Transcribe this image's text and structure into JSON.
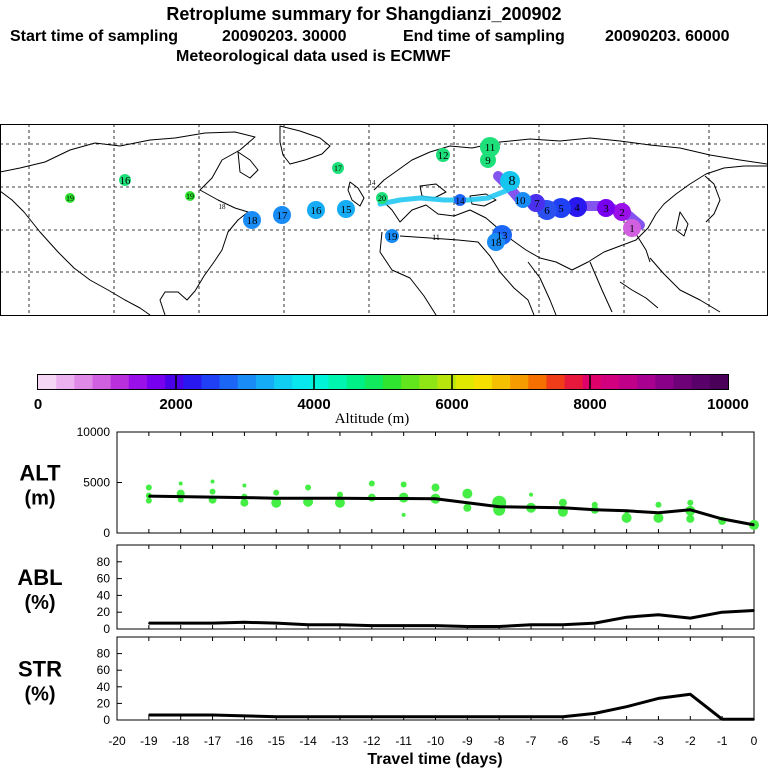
{
  "header": {
    "title": "Retroplume summary for Shangdianzi_200902",
    "start_label": "Start time of sampling",
    "start_value": "20090203. 30000",
    "end_label": "End time of sampling",
    "end_value": "20090203. 60000",
    "met_label": "Meteorological data used is ECMWF"
  },
  "colorbar": {
    "label": "Altitude (m)",
    "tick_labels": [
      "0",
      "2000",
      "4000",
      "6000",
      "8000",
      "10000"
    ],
    "colors": [
      "#f5d6f5",
      "#ecb2ef",
      "#e08ae8",
      "#d060e0",
      "#b830dc",
      "#9a10e8",
      "#7800f0",
      "#4a00e8",
      "#2a18f0",
      "#1f40f5",
      "#1c66f5",
      "#1a8cf5",
      "#16acf5",
      "#10cdf2",
      "#08e6ee",
      "#00f5d8",
      "#00f5b0",
      "#00f088",
      "#10ea5c",
      "#30e530",
      "#62e51c",
      "#90e614",
      "#b8e60c",
      "#e0e800",
      "#f5e000",
      "#f5c000",
      "#f59c00",
      "#f57000",
      "#f03c18",
      "#e8183c",
      "#e0006a",
      "#d2007e",
      "#c00088",
      "#a80090",
      "#8a0088",
      "#6e0078",
      "#5a006a",
      "#4a0058"
    ]
  },
  "map_labels": [
    {
      "t": "11",
      "c": "#1ee07a"
    },
    {
      "t": "12",
      "c": "#1ee07a"
    },
    {
      "t": "9",
      "c": "#1ee07a"
    },
    {
      "t": "8",
      "c": "#14c6ee"
    },
    {
      "t": "10",
      "c": "#1a8cf5"
    },
    {
      "t": "7",
      "c": "#4a30ee"
    },
    {
      "t": "6",
      "c": "#2a50f0"
    },
    {
      "t": "5",
      "c": "#1f40f5"
    },
    {
      "t": "4",
      "c": "#2a18f0"
    },
    {
      "t": "3",
      "c": "#7800f0"
    },
    {
      "t": "2",
      "c": "#9a10e8"
    },
    {
      "t": "1",
      "c": "#d060e0"
    },
    {
      "t": "13",
      "c": "#1c66f5"
    },
    {
      "t": "14",
      "c": "#1c66f5"
    },
    {
      "t": "15",
      "c": "#16acf5"
    },
    {
      "t": "16",
      "c": "#16acf5"
    },
    {
      "t": "17",
      "c": "#1a8cf5"
    },
    {
      "t": "18",
      "c": "#1a8cf5"
    },
    {
      "t": "19",
      "c": "#30e530"
    },
    {
      "t": "18",
      "c": "#1c66f5"
    },
    {
      "t": "19",
      "c": "#1a8cf5"
    },
    {
      "t": "20",
      "c": "#1c66f5"
    },
    {
      "t": "16",
      "c": "#1ee07a"
    },
    {
      "t": "18",
      "c": "#30e530"
    },
    {
      "t": "19",
      "c": "#1ee07a"
    },
    {
      "t": "17",
      "c": "#30e530"
    },
    {
      "t": "11",
      "c": "#4a00e8"
    },
    {
      "t": "14",
      "c": "#9a10e8"
    }
  ],
  "chart_data": [
    {
      "type": "line",
      "panel": "ALT",
      "ylabel_line1": "ALT",
      "ylabel_line2": "(m)",
      "x": [
        -19,
        -18,
        -17,
        -16,
        -15,
        -14,
        -13,
        -12,
        -11,
        -10,
        -9,
        -8,
        -7,
        -6,
        -5,
        -4,
        -3,
        -2,
        -1,
        0
      ],
      "series": [
        {
          "name": "mean altitude",
          "values": [
            3650,
            3600,
            3550,
            3500,
            3450,
            3450,
            3450,
            3420,
            3420,
            3400,
            3000,
            2600,
            2550,
            2500,
            2300,
            2200,
            2000,
            2300,
            1400,
            800
          ]
        }
      ],
      "scatter": {
        "x": [
          -19,
          -19,
          -19,
          -18,
          -18,
          -18,
          -17,
          -17,
          -17,
          -16,
          -16,
          -16,
          -15,
          -15,
          -14,
          -14,
          -13,
          -13,
          -12,
          -12,
          -11,
          -11,
          -11,
          -10,
          -10,
          -9,
          -9,
          -8,
          -8,
          -7,
          -7,
          -6,
          -6,
          -5,
          -5,
          -4,
          -4,
          -3,
          -3,
          -2,
          -2,
          -2,
          -1,
          0
        ],
        "y": [
          4500,
          3700,
          3200,
          4900,
          3900,
          3300,
          5100,
          4100,
          3300,
          4700,
          3600,
          3000,
          4000,
          3000,
          4500,
          3100,
          3800,
          3000,
          4900,
          3500,
          4800,
          3500,
          1800,
          4500,
          3400,
          3900,
          2500,
          3000,
          2300,
          2500,
          3800,
          3000,
          2100,
          2800,
          2300,
          2000,
          1500,
          2800,
          1500,
          3000,
          2200,
          1400,
          1200,
          800
        ],
        "size": [
          3,
          3,
          3,
          2,
          4,
          3,
          2,
          3,
          4,
          2,
          3,
          4,
          3,
          5,
          3,
          5,
          3,
          5,
          3,
          4,
          3,
          5,
          2,
          4,
          5,
          5,
          4,
          7,
          6,
          5,
          2,
          4,
          5,
          3,
          4,
          2,
          5,
          3,
          5,
          3,
          5,
          4,
          4,
          5
        ]
      },
      "ylim": [
        0,
        10000
      ],
      "yticks": [
        "0",
        "5000",
        "10000"
      ],
      "color": "#44ee44"
    },
    {
      "type": "line",
      "panel": "ABL",
      "ylabel_line1": "ABL",
      "ylabel_line2": "(%)",
      "x": [
        -19,
        -18,
        -17,
        -16,
        -15,
        -14,
        -13,
        -12,
        -11,
        -10,
        -9,
        -8,
        -7,
        -6,
        -5,
        -4,
        -3,
        -2,
        -1,
        0
      ],
      "series": [
        {
          "name": "ABL fraction",
          "values": [
            7,
            7,
            7,
            8,
            7,
            5,
            5,
            4,
            4,
            4,
            3,
            3,
            5,
            5,
            7,
            14,
            17,
            13,
            20,
            22
          ]
        }
      ],
      "ylim": [
        0,
        100
      ],
      "yticks": [
        "0",
        "20",
        "40",
        "60",
        "80"
      ]
    },
    {
      "type": "line",
      "panel": "STR",
      "ylabel_line1": "STR",
      "ylabel_line2": "(%)",
      "x": [
        -19,
        -18,
        -17,
        -16,
        -15,
        -14,
        -13,
        -12,
        -11,
        -10,
        -9,
        -8,
        -7,
        -6,
        -5,
        -4,
        -3,
        -2,
        -1,
        0
      ],
      "series": [
        {
          "name": "stratospheric fraction",
          "values": [
            6,
            6,
            6,
            5,
            4,
            4,
            4,
            4,
            4,
            4,
            4,
            4,
            4,
            4,
            8,
            16,
            26,
            31,
            1,
            1
          ]
        }
      ],
      "ylim": [
        0,
        100
      ],
      "yticks": [
        "0",
        "20",
        "40",
        "60",
        "80"
      ],
      "xlabel": "Travel time (days)",
      "xticks": [
        "-20",
        "-19",
        "-18",
        "-17",
        "-16",
        "-15",
        "-14",
        "-13",
        "-12",
        "-11",
        "-10",
        "-9",
        "-8",
        "-7",
        "-6",
        "-5",
        "-4",
        "-3",
        "-2",
        "-1",
        "0"
      ]
    }
  ]
}
